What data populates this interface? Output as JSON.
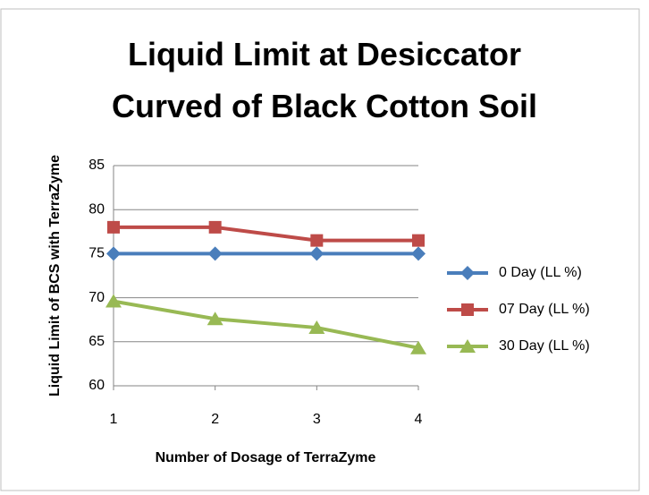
{
  "chart_data": {
    "type": "line",
    "title": "Liquid Limit at Desiccator Curved of Black Cotton Soil",
    "x_label": "Number of Dosage of TerraZyme",
    "y_label": "Liquid Limit of BCS with TerraZyme",
    "x": [
      1,
      2,
      3,
      4
    ],
    "xlim": [
      1,
      4
    ],
    "xticks": [
      1,
      2,
      3,
      4
    ],
    "ylim": [
      60,
      85
    ],
    "yticks": [
      60,
      65,
      70,
      75,
      80,
      85
    ],
    "grid": true,
    "legend": "right",
    "series": [
      {
        "name": "0 Day (LL %)",
        "color": "#4a7ebb",
        "marker": "diamond",
        "values": [
          75,
          75,
          75,
          75
        ]
      },
      {
        "name": "07 Day (LL %)",
        "color": "#be4b48",
        "marker": "square",
        "values": [
          78,
          78,
          76.5,
          76.5
        ]
      },
      {
        "name": "30 Day (LL %)",
        "color": "#98b954",
        "marker": "triangle",
        "values": [
          69.6,
          67.6,
          66.6,
          64.3
        ]
      }
    ]
  }
}
